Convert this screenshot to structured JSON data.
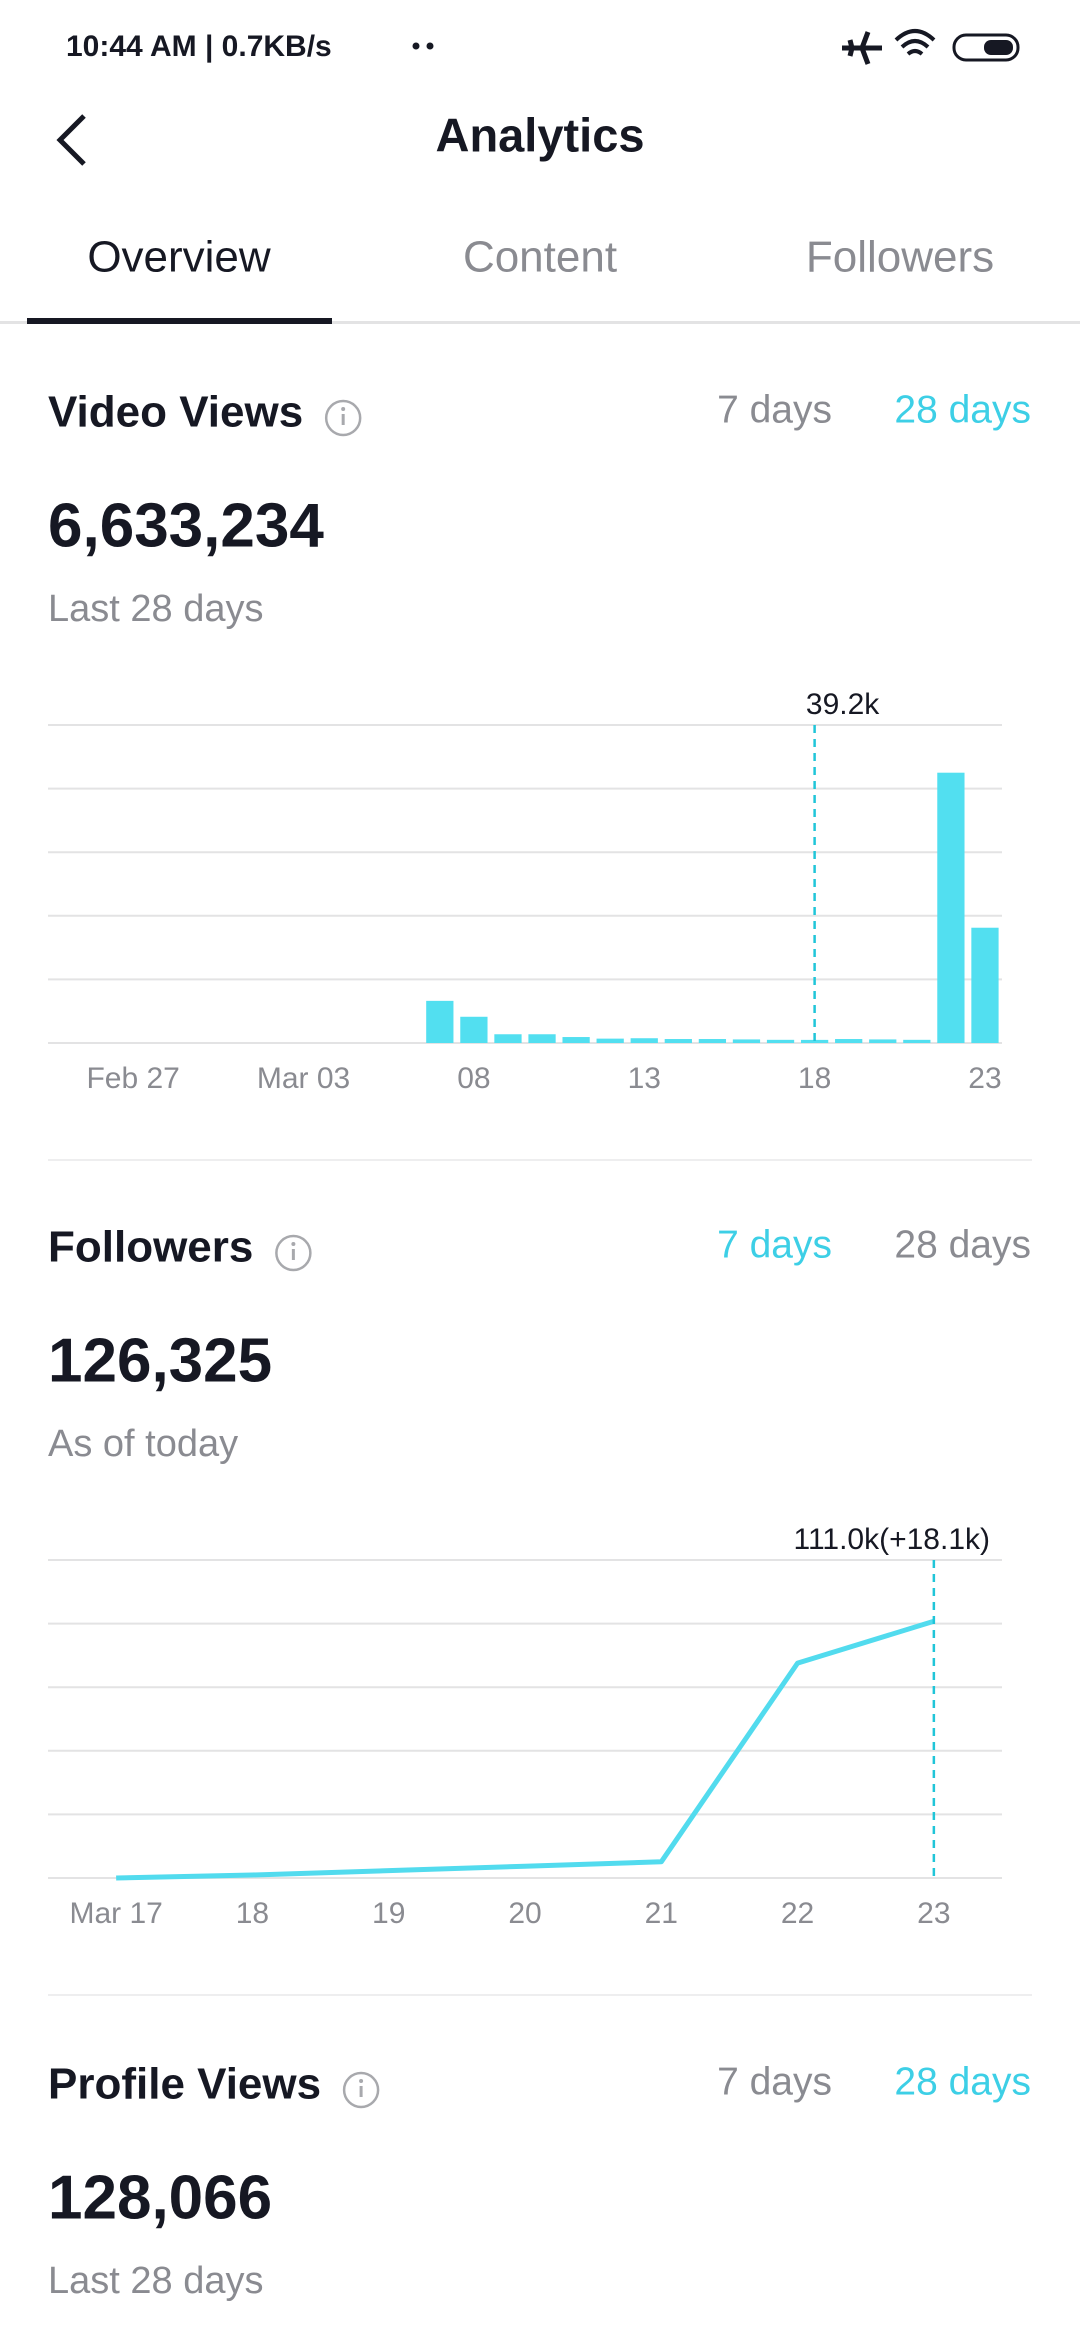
{
  "status_bar": {
    "text": "10:44 AM | 0.7KB/s"
  },
  "header": {
    "title": "Analytics"
  },
  "tabs": [
    {
      "label": "Overview",
      "active": true
    },
    {
      "label": "Content",
      "active": false
    },
    {
      "label": "Followers",
      "active": false
    }
  ],
  "sections": [
    {
      "title": "Video Views",
      "periods": [
        {
          "label": "7 days",
          "color": "#8a8b91"
        },
        {
          "label": "28 days",
          "color": "#3dcfe6"
        }
      ],
      "value": "6,633,234",
      "subtitle": "Last 28 days"
    },
    {
      "title": "Followers",
      "periods": [
        {
          "label": "7 days",
          "color": "#3dcfe6"
        },
        {
          "label": "28 days",
          "color": "#8a8b91"
        }
      ],
      "value": "126,325",
      "subtitle": "As of today"
    },
    {
      "title": "Profile Views",
      "periods": [
        {
          "label": "7 days",
          "color": "#8a8b91"
        },
        {
          "label": "28 days",
          "color": "#3dcfe6"
        }
      ],
      "value": "128,066",
      "subtitle": "Last 28 days"
    }
  ],
  "chart_data": [
    {
      "type": "bar",
      "color": "#52dff0",
      "categories": [
        null,
        null,
        "Feb 27",
        null,
        null,
        null,
        null,
        "Mar 03",
        null,
        null,
        null,
        null,
        "08",
        null,
        null,
        null,
        null,
        "13",
        null,
        null,
        null,
        null,
        "18",
        null,
        null,
        null,
        null,
        "23"
      ],
      "values": [
        0,
        0,
        0,
        0,
        0,
        0,
        0,
        0,
        0,
        0,
        0,
        530000,
        330000,
        110000,
        110000,
        75000,
        55000,
        60000,
        50000,
        50000,
        45000,
        40000,
        39200,
        50000,
        45000,
        40000,
        3400000,
        1450000
      ],
      "ylim": [
        0,
        4000000
      ],
      "grid_lines": [
        0,
        800000,
        1600000,
        2400000,
        3200000,
        4000000
      ],
      "annotation": {
        "x": "18",
        "label": "39.2k"
      }
    },
    {
      "type": "line",
      "color": "#52dbee",
      "categories": [
        "Mar 17",
        "18",
        "19",
        "20",
        "21",
        "22",
        "23"
      ],
      "values": [
        0,
        1300,
        3200,
        5100,
        7000,
        92900,
        111000
      ],
      "ylim": [
        0,
        137500
      ],
      "grid_lines": [
        0,
        27500,
        55000,
        82500,
        110000,
        137500
      ],
      "annotation": {
        "x": "23",
        "label": "111.0k(+18.1k)"
      }
    }
  ]
}
